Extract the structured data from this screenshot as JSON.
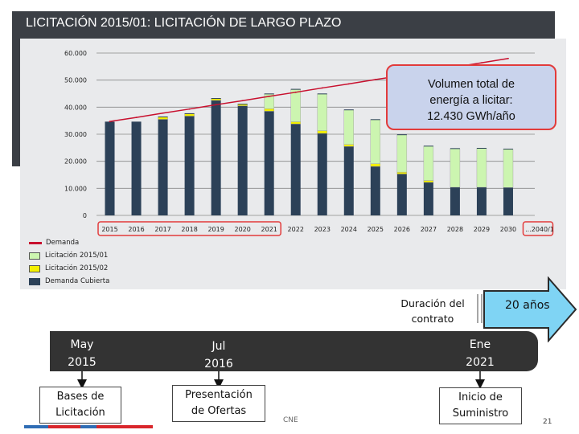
{
  "header": {
    "title": "LICITACIÓN 2015/01: LICITACIÓN DE LARGO PLAZO"
  },
  "callout": {
    "line1": "Volumen total de",
    "line2": "energía a licitar:",
    "line3": "12.430 GWh/año"
  },
  "colors": {
    "demanda": "#c8102e",
    "licitacion_2015_01": "#ccf5b0",
    "licitacion_2015_02": "#f4f000",
    "demanda_cubierta": "#2c4158",
    "arrow": "#7fd4f4"
  },
  "chart_data": {
    "type": "bar",
    "categories": [
      "2015",
      "2016",
      "2017",
      "2018",
      "2019",
      "2020",
      "2021",
      "2022",
      "2023",
      "2024",
      "2025",
      "2026",
      "2027",
      "2028",
      "2029",
      "2030",
      "...2040/1"
    ],
    "ylim": [
      0,
      60000
    ],
    "yticks": [
      "60.000",
      "50.000",
      "40.000",
      "30.000",
      "20.000",
      "10.000",
      "0"
    ],
    "ytick_values": [
      60000,
      50000,
      40000,
      30000,
      20000,
      10000,
      0
    ],
    "series": [
      {
        "name": "Demanda Cubierta",
        "values": [
          34500,
          34500,
          35500,
          36700,
          42500,
          40500,
          38500,
          33800,
          30300,
          25500,
          18100,
          15300,
          12200,
          10400,
          10400,
          10300,
          null
        ]
      },
      {
        "name": "Licitación 2015/02",
        "values": [
          0,
          0,
          900,
          900,
          700,
          600,
          900,
          800,
          1000,
          700,
          1000,
          700,
          700,
          0,
          0,
          0,
          null
        ]
      },
      {
        "name": "Licitación 2015/01",
        "values": [
          0,
          0,
          0,
          0,
          0,
          0,
          5500,
          12000,
          13600,
          12800,
          16300,
          13800,
          12700,
          14300,
          14400,
          14200,
          null
        ]
      },
      {
        "name": "Demanda",
        "values": [
          34700,
          36200,
          37800,
          39300,
          40900,
          42400,
          44000,
          45500,
          47100,
          48600,
          50200,
          51700,
          53300,
          54800,
          56400,
          58000,
          null
        ]
      }
    ],
    "legend": [
      "Demanda",
      "Licitación 2015/01",
      "Licitación 2015/02",
      "Demanda Cubierta"
    ],
    "legend_position": "bottom-left",
    "highlighted_range": [
      "2015",
      "2021"
    ],
    "highlighted_last": "...2040/1"
  },
  "timeline": {
    "duration_label_1": "Duración del",
    "duration_label_2": "contrato",
    "years_label": "20 años",
    "dates": [
      {
        "line1": "May",
        "line2": "2015"
      },
      {
        "line1": "Jul",
        "line2": "2016"
      },
      {
        "line1": "Ene",
        "line2": "2021"
      }
    ],
    "milestones": [
      {
        "line1": "Bases de",
        "line2": "Licitación"
      },
      {
        "line1": "Presentación",
        "line2": "de Ofertas"
      },
      {
        "line1": "Inicio de",
        "line2": "Suministro"
      }
    ]
  },
  "footer": {
    "source": "CNE",
    "page": "21"
  }
}
